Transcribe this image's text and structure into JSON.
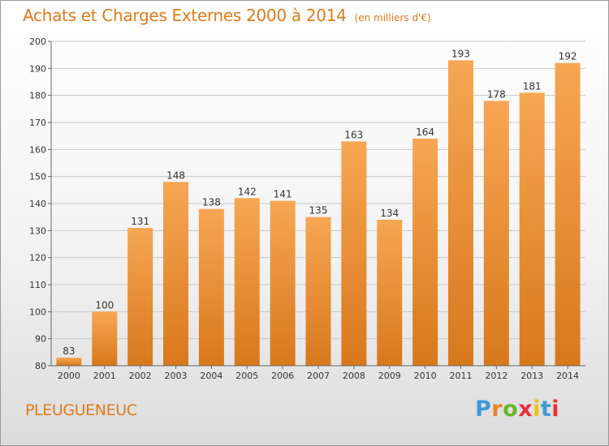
{
  "title": "Achats et Charges Externes 2000 à 2014",
  "unit_note": "(en milliers d'€)",
  "commune": "PLEUGUENEUC",
  "logo": {
    "text": "Proxiti",
    "letter_colors": [
      "#3d9ad6",
      "#e8841d",
      "#69b42e",
      "#e8303b",
      "#f2c20f",
      "#3d9ad6",
      "#e8303b"
    ]
  },
  "colors": {
    "bar_light": "#f7a654",
    "bar_dark": "#d8781c",
    "grid": "#c8c8c8",
    "text": "#333333",
    "title": "#e07a1c"
  },
  "chart_data": {
    "type": "bar",
    "title": "Achats et Charges Externes 2000 à 2014",
    "categories": [
      "2000",
      "2001",
      "2002",
      "2003",
      "2004",
      "2005",
      "2006",
      "2007",
      "2008",
      "2009",
      "2010",
      "2011",
      "2012",
      "2013",
      "2014"
    ],
    "values": [
      83,
      100,
      131,
      148,
      138,
      142,
      141,
      135,
      163,
      134,
      164,
      193,
      178,
      181,
      192
    ],
    "ylim": [
      80,
      200
    ],
    "yticks": [
      80,
      90,
      100,
      110,
      120,
      130,
      140,
      150,
      160,
      170,
      180,
      190,
      200
    ],
    "grid": true,
    "data_labels": true
  }
}
